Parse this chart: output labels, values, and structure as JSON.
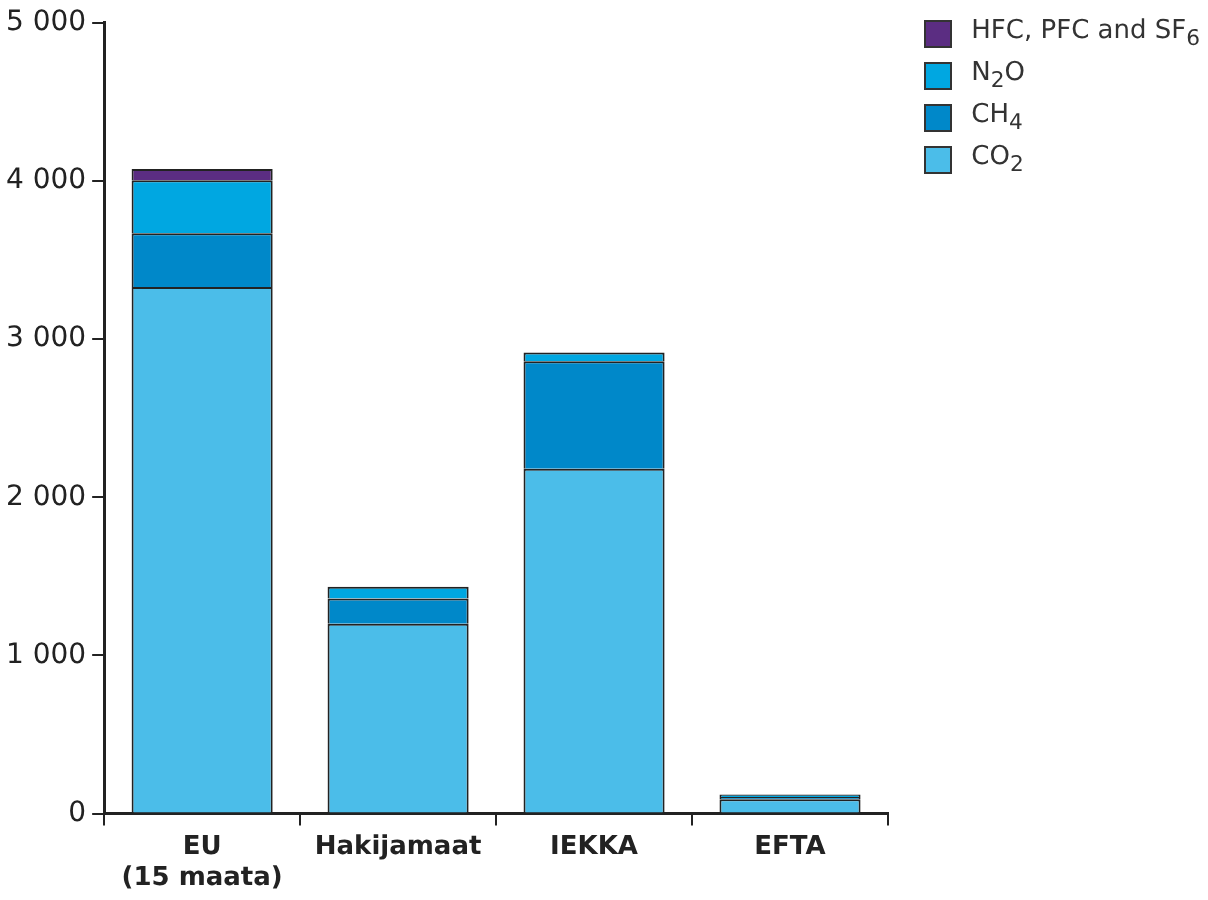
{
  "chart_data": {
    "type": "bar",
    "stacked": true,
    "categories": [
      "EU\n(15 maata)",
      "Hakijamaat",
      "IEKKA",
      "EFTA"
    ],
    "series": [
      {
        "name": "CO$_{2}$",
        "color": "#4bbde9",
        "values": [
          3330,
          1200,
          2180,
          90
        ]
      },
      {
        "name": "CH$_{4}$",
        "color": "#0088c9",
        "values": [
          340,
          160,
          680,
          15
        ]
      },
      {
        "name": "N$_{2}$O",
        "color": "#00a7e1",
        "values": [
          335,
          75,
          55,
          15
        ]
      },
      {
        "name": "HFC, PFC and SF$_{6}$",
        "color": "#5b2d82",
        "values": [
          70,
          0,
          0,
          0
        ]
      }
    ],
    "ylim": [
      0,
      5000
    ],
    "yticks": [
      {
        "value": 0,
        "label": "0"
      },
      {
        "value": 1000,
        "label": "1 000"
      },
      {
        "value": 2000,
        "label": "2 000"
      },
      {
        "value": 3000,
        "label": "3 000"
      },
      {
        "value": 4000,
        "label": "4 000"
      },
      {
        "value": 5000,
        "label": "5 000"
      }
    ],
    "grid": false,
    "legend": "top right"
  }
}
